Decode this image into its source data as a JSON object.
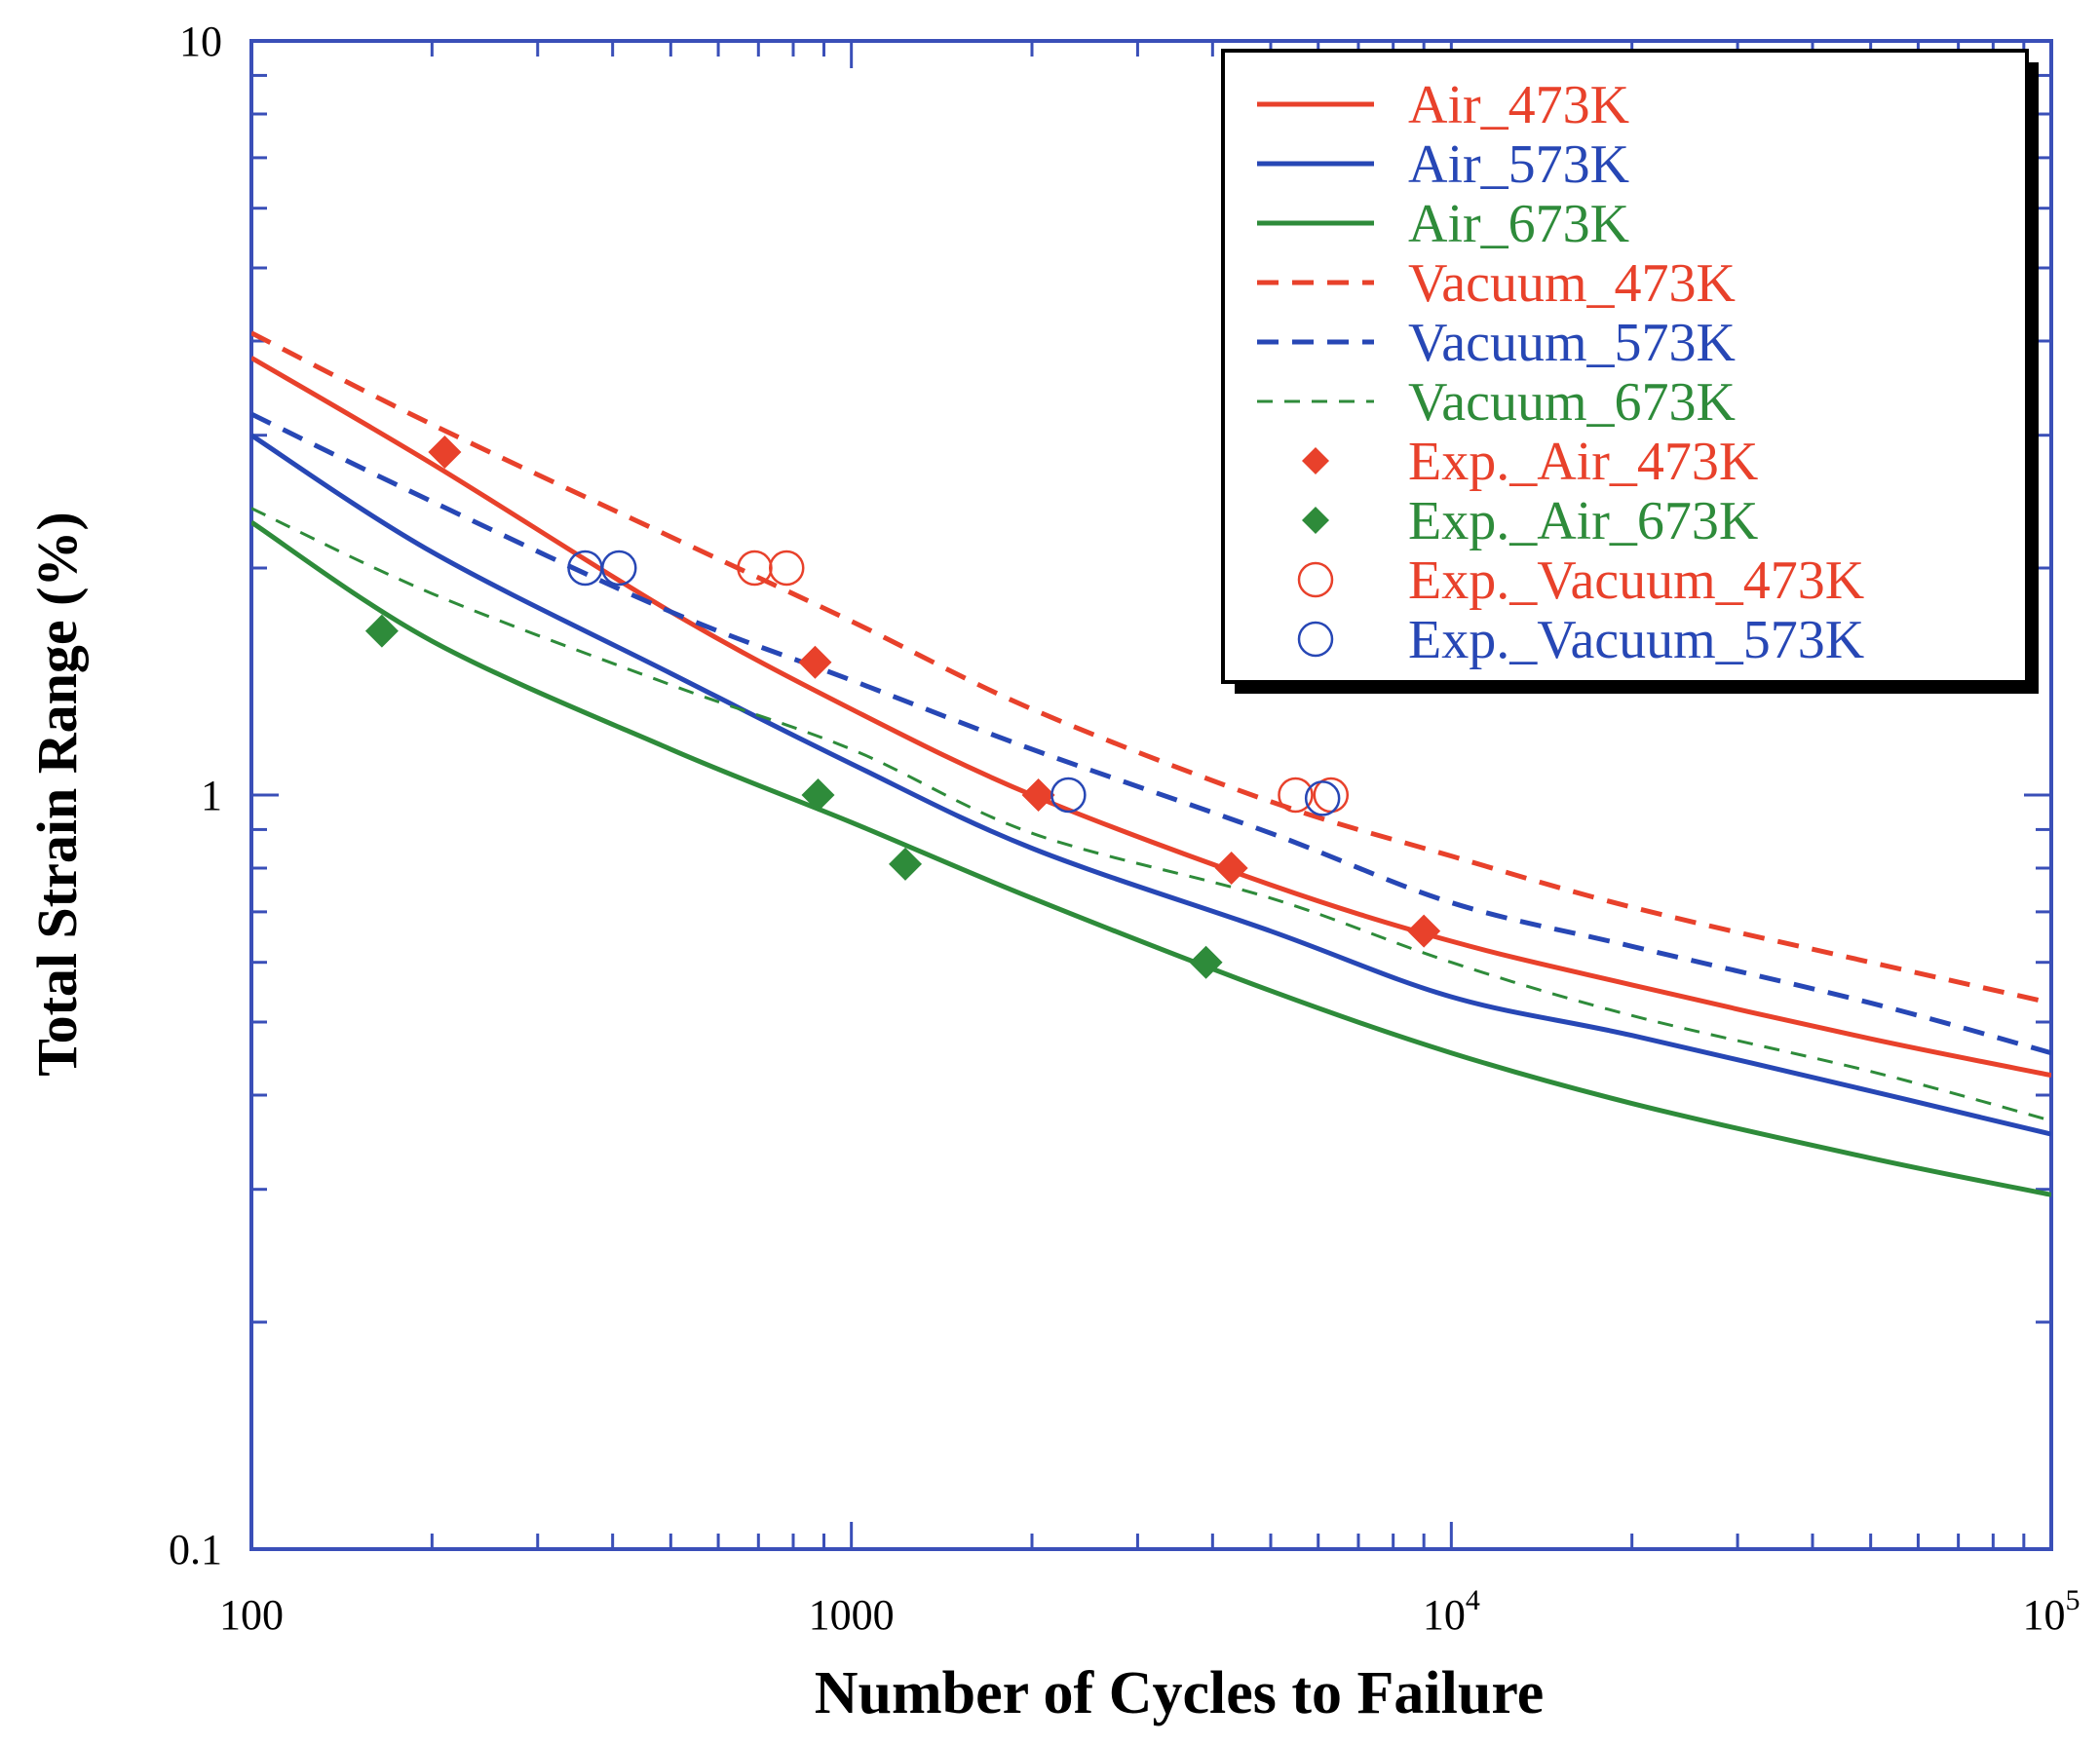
{
  "chart_data": {
    "type": "line",
    "title": "",
    "xlabel": "Number of Cycles to Failure",
    "ylabel": "Total Strain Range (%)",
    "xscale": "log",
    "yscale": "log",
    "xlim": [
      100,
      100000
    ],
    "ylim": [
      0.1,
      10
    ],
    "x_ticks": [
      {
        "value": 100,
        "label": "100"
      },
      {
        "value": 1000,
        "label": "1000"
      },
      {
        "value": 10000,
        "label": "10",
        "exp": "4"
      },
      {
        "value": 100000,
        "label": "10",
        "exp": "5"
      }
    ],
    "y_ticks": [
      {
        "value": 0.1,
        "label": "0.1"
      },
      {
        "value": 1,
        "label": "1"
      },
      {
        "value": 10,
        "label": "10"
      }
    ],
    "grid": false,
    "legend_position": "top-right",
    "colors": {
      "red": "#e8412b",
      "blue": "#2747b5",
      "green": "#2e8b3a",
      "axis": "#3a4fb8"
    },
    "series": [
      {
        "name": "Air_473K",
        "kind": "line",
        "style": "solid",
        "color": "#e8412b",
        "x": [
          100,
          200,
          500,
          1000,
          2000,
          5000,
          10000,
          20000,
          50000,
          100000
        ],
        "y": [
          3.8,
          2.75,
          1.75,
          1.3,
          1.0,
          0.76,
          0.64,
          0.56,
          0.475,
          0.425
        ]
      },
      {
        "name": "Air_573K",
        "kind": "line",
        "style": "solid",
        "color": "#2747b5",
        "x": [
          100,
          200,
          500,
          1000,
          2000,
          5000,
          10000,
          20000,
          50000,
          100000
        ],
        "y": [
          3.0,
          2.1,
          1.45,
          1.1,
          0.85,
          0.66,
          0.54,
          0.48,
          0.405,
          0.355
        ]
      },
      {
        "name": "Air_673K",
        "kind": "line",
        "style": "solid",
        "color": "#2e8b3a",
        "x": [
          100,
          200,
          500,
          1000,
          2000,
          5000,
          10000,
          20000,
          50000,
          100000
        ],
        "y": [
          2.3,
          1.6,
          1.15,
          0.92,
          0.73,
          0.55,
          0.455,
          0.39,
          0.33,
          0.295
        ]
      },
      {
        "name": "Vacuum_473K",
        "kind": "line",
        "style": "dashed",
        "color": "#e8412b",
        "x": [
          100,
          200,
          500,
          1000,
          2000,
          5000,
          10000,
          20000,
          50000,
          100000
        ],
        "y": [
          4.1,
          3.1,
          2.2,
          1.7,
          1.3,
          0.98,
          0.83,
          0.71,
          0.6,
          0.53
        ]
      },
      {
        "name": "Vacuum_573K",
        "kind": "line",
        "style": "dashed",
        "color": "#2747b5",
        "x": [
          100,
          200,
          500,
          1000,
          2000,
          5000,
          10000,
          20000,
          50000,
          100000
        ],
        "y": [
          3.2,
          2.45,
          1.75,
          1.42,
          1.15,
          0.89,
          0.72,
          0.63,
          0.53,
          0.455
        ]
      },
      {
        "name": "Vacuum_673K",
        "kind": "line",
        "style": "dashed-thin",
        "color": "#2e8b3a",
        "x": [
          100,
          200,
          500,
          1000,
          2000,
          5000,
          10000,
          20000,
          50000,
          100000
        ],
        "y": [
          2.4,
          1.85,
          1.4,
          1.15,
          0.89,
          0.73,
          0.6,
          0.51,
          0.43,
          0.37
        ]
      },
      {
        "name": "Exp._Air_473K",
        "kind": "scatter",
        "marker": "diamond-filled",
        "color": "#e8412b",
        "x": [
          210,
          870,
          2050,
          4300,
          9000
        ],
        "y": [
          2.85,
          1.5,
          1.0,
          0.8,
          0.66
        ]
      },
      {
        "name": "Exp._Air_673K",
        "kind": "scatter",
        "marker": "diamond-filled",
        "color": "#2e8b3a",
        "x": [
          165,
          880,
          1230,
          3900
        ],
        "y": [
          1.65,
          1.0,
          0.81,
          0.6
        ]
      },
      {
        "name": "Exp._Vacuum_473K",
        "kind": "scatter",
        "marker": "circle-open",
        "color": "#e8412b",
        "x": [
          690,
          780,
          5500,
          6300
        ],
        "y": [
          2.0,
          2.0,
          1.0,
          1.0
        ]
      },
      {
        "name": "Exp._Vacuum_573K",
        "kind": "scatter",
        "marker": "circle-open",
        "color": "#2747b5",
        "x": [
          360,
          410,
          2300,
          6100
        ],
        "y": [
          2.0,
          2.0,
          1.0,
          0.99
        ]
      }
    ]
  }
}
